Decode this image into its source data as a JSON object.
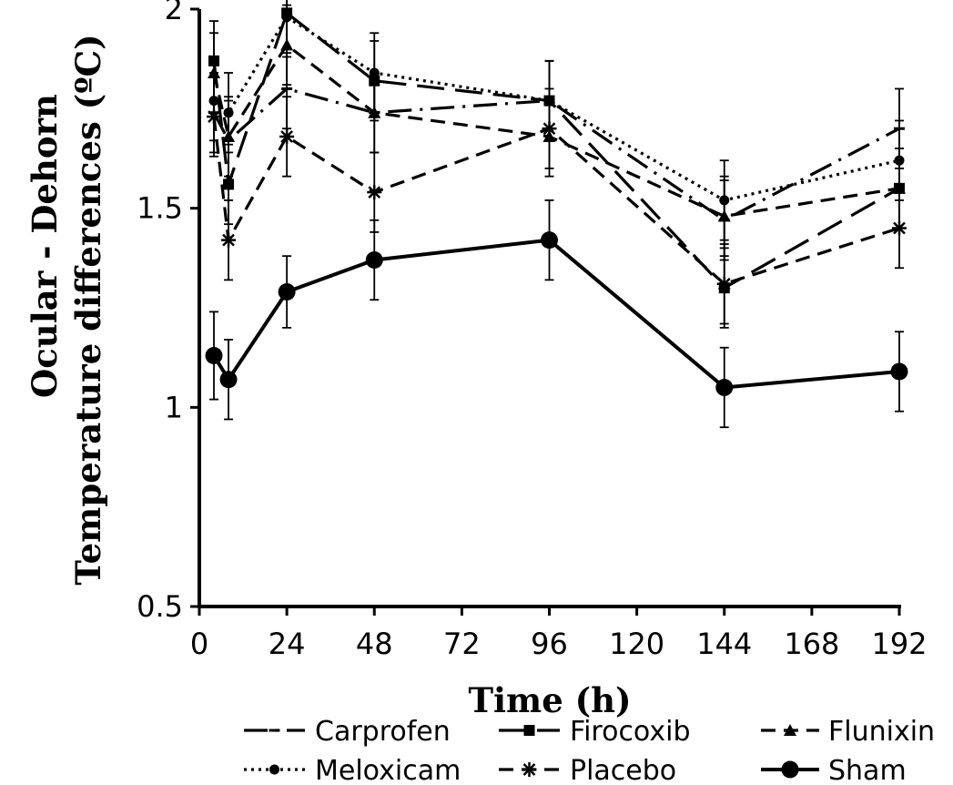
{
  "chart_data": {
    "type": "line",
    "xlabel": "Time (h)",
    "ylabel_lines": [
      "Ocular - Dehorn",
      "Temperature differences (ºC)"
    ],
    "xlim": [
      0,
      192
    ],
    "ylim": [
      0.5,
      2
    ],
    "xticks": [
      0,
      24,
      48,
      72,
      96,
      120,
      144,
      168,
      192
    ],
    "yticks": [
      0.5,
      1,
      1.5,
      2
    ],
    "ytick_labels": [
      "0.5",
      "1",
      "1.5",
      "2"
    ],
    "x": [
      4,
      8,
      24,
      48,
      96,
      144,
      192
    ],
    "legend_placement": "bottom",
    "series": [
      {
        "name": "Carprofen",
        "dash": "long-dash-dot",
        "marker": "dash",
        "values": [
          1.74,
          1.67,
          1.8,
          1.74,
          1.77,
          1.47,
          1.7
        ],
        "errors": [
          0.1,
          0.1,
          0.1,
          0.1,
          0.1,
          0.1,
          0.1
        ]
      },
      {
        "name": "Firocoxib",
        "dash": "long-dash",
        "marker": "square",
        "values": [
          1.87,
          1.56,
          1.99,
          1.82,
          1.77,
          1.3,
          1.55
        ],
        "errors": [
          0.1,
          0.1,
          0.1,
          0.1,
          0.1,
          0.1,
          0.1
        ]
      },
      {
        "name": "Flunixin",
        "dash": "dash",
        "marker": "triangle",
        "values": [
          1.84,
          1.68,
          1.91,
          1.74,
          1.68,
          1.48,
          1.55
        ],
        "errors": [
          0.1,
          0.1,
          0.1,
          0.1,
          0.1,
          0.1,
          0.1
        ]
      },
      {
        "name": "Meloxicam",
        "dash": "dot",
        "marker": "circle-small",
        "values": [
          1.77,
          1.74,
          1.98,
          1.84,
          1.77,
          1.52,
          1.62
        ],
        "errors": [
          0.1,
          0.1,
          0.1,
          0.1,
          0.1,
          0.1,
          0.1
        ]
      },
      {
        "name": "Placebo",
        "dash": "dash",
        "marker": "asterisk",
        "values": [
          1.73,
          1.42,
          1.68,
          1.54,
          1.7,
          1.31,
          1.45
        ],
        "errors": [
          0.1,
          0.1,
          0.1,
          0.1,
          0.1,
          0.1,
          0.1
        ]
      },
      {
        "name": "Sham",
        "dash": "solid",
        "marker": "circle-large",
        "values": [
          1.13,
          1.07,
          1.29,
          1.37,
          1.42,
          1.05,
          1.09
        ],
        "errors": [
          0.11,
          0.1,
          0.09,
          0.1,
          0.1,
          0.1,
          0.1
        ]
      }
    ]
  }
}
